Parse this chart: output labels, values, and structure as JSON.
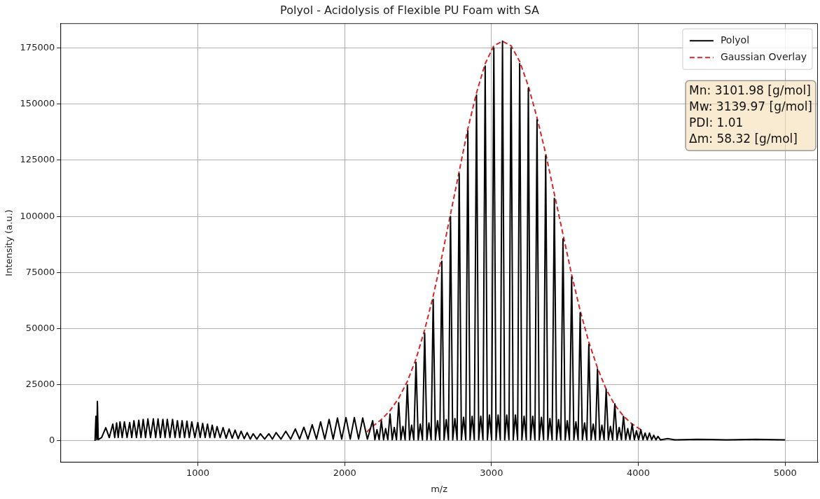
{
  "chart_data": {
    "type": "line",
    "title": "Polyol - Acidolysis of Flexible PU Foam with SA",
    "xlabel": "m/z",
    "ylabel": "Intensity (a.u.)",
    "xlim": [
      64,
      5223
    ],
    "ylim": [
      -9600,
      186000
    ],
    "xticks": [
      1000,
      2000,
      3000,
      4000,
      5000
    ],
    "yticks": [
      0,
      25000,
      50000,
      75000,
      100000,
      125000,
      150000,
      175000
    ],
    "grid": true,
    "legend": "top right",
    "marker": "none",
    "annotations": [
      "Mn: 3101.98 [g/mol]",
      "Mw: 3139.97 [g/mol]",
      "PDI: 1.01",
      "Δm: 58.32 [g/mol]"
    ],
    "series": [
      {
        "name": "Polyol",
        "color": "#000000",
        "line_style": "solid",
        "x": [
          300,
          306,
          312,
          316,
          322,
          345,
          373,
          397,
          421,
          434,
          447,
          458,
          470,
          485,
          500,
          518,
          536,
          550,
          565,
          582,
          598,
          613,
          628,
          644,
          660,
          678,
          697,
          713,
          729,
          745,
          762,
          777,
          792,
          810,
          828,
          845,
          861,
          877,
          893,
          910,
          926,
          942,
          959,
          980,
          1000,
          1016,
          1033,
          1050,
          1066,
          1082,
          1098,
          1115,
          1131,
          1152,
          1172,
          1193,
          1213,
          1234,
          1254,
          1275,
          1295,
          1316,
          1336,
          1357,
          1377,
          1402,
          1426,
          1455,
          1484,
          1508,
          1533,
          1566,
          1599,
          1632,
          1664,
          1693,
          1722,
          1750,
          1779,
          1808,
          1836,
          1865,
          1894,
          1922,
          1951,
          1980,
          2009,
          2038,
          2066,
          2095,
          2123,
          2155,
          2191,
          2206,
          2220,
          2235,
          2250,
          2265,
          2279,
          2294,
          2309,
          2324,
          2338,
          2353,
          2368,
          2383,
          2397,
          2412,
          2427,
          2442,
          2456,
          2471,
          2486,
          2501,
          2515,
          2530,
          2545,
          2560,
          2574,
          2589,
          2603,
          2618,
          2633,
          2648,
          2662,
          2677,
          2692,
          2707,
          2721,
          2736,
          2751,
          2766,
          2780,
          2795,
          2810,
          2825,
          2839,
          2854,
          2868,
          2883,
          2898,
          2913,
          2927,
          2942,
          2957,
          2972,
          2986,
          3001,
          3016,
          3031,
          3045,
          3060,
          3075,
          3090,
          3104,
          3119,
          3133,
          3148,
          3163,
          3178,
          3192,
          3207,
          3222,
          3237,
          3251,
          3266,
          3281,
          3296,
          3310,
          3325,
          3340,
          3355,
          3369,
          3384,
          3398,
          3413,
          3428,
          3443,
          3457,
          3472,
          3487,
          3502,
          3516,
          3531,
          3546,
          3561,
          3575,
          3590,
          3604,
          3619,
          3634,
          3649,
          3663,
          3678,
          3693,
          3708,
          3722,
          3737,
          3752,
          3767,
          3781,
          3796,
          3810,
          3825,
          3840,
          3855,
          3870,
          3885,
          3899,
          3914,
          3928,
          3943,
          3958,
          3973,
          3987,
          4002,
          4017,
          4032,
          4046,
          4061,
          4076,
          4091,
          4105,
          4120,
          4134,
          4150,
          4200,
          4250,
          4400,
          4600,
          4800,
          5000
        ],
        "values": [
          0,
          11000,
          600,
          17600,
          600,
          1500,
          5900,
          1500,
          7500,
          1500,
          8000,
          1500,
          8500,
          1500,
          8500,
          1500,
          8200,
          1500,
          9000,
          1500,
          9200,
          1500,
          9600,
          1500,
          9800,
          1500,
          9800,
          1500,
          9800,
          1500,
          9600,
          1500,
          9600,
          1500,
          9600,
          1500,
          9000,
          1500,
          9000,
          1500,
          8800,
          1500,
          8500,
          1500,
          8200,
          1500,
          7800,
          1500,
          7500,
          1500,
          7000,
          1500,
          6400,
          1500,
          5900,
          1200,
          5300,
          1200,
          4800,
          1000,
          4300,
          1000,
          3700,
          800,
          3200,
          800,
          3200,
          800,
          3200,
          800,
          3700,
          800,
          4300,
          800,
          5300,
          800,
          6100,
          800,
          7200,
          800,
          8500,
          800,
          9600,
          800,
          10200,
          800,
          10400,
          800,
          10400,
          800,
          10200,
          800,
          9000,
          500,
          5000,
          500,
          9000,
          500,
          5500,
          500,
          12000,
          500,
          6000,
          500,
          17000,
          500,
          6500,
          500,
          25000,
          500,
          7000,
          500,
          35000,
          500,
          7500,
          500,
          48000,
          500,
          8000,
          500,
          63000,
          500,
          9000,
          500,
          80000,
          500,
          9500,
          500,
          100000,
          500,
          10000,
          500,
          119000,
          500,
          10500,
          500,
          138000,
          500,
          11000,
          500,
          154000,
          500,
          11000,
          500,
          167000,
          500,
          11500,
          500,
          175000,
          500,
          11500,
          500,
          178000,
          500,
          11500,
          500,
          175000,
          500,
          11500,
          500,
          168000,
          500,
          11000,
          500,
          157000,
          500,
          11000,
          500,
          143000,
          500,
          10500,
          500,
          127000,
          500,
          10000,
          500,
          108000,
          500,
          9500,
          500,
          90000,
          500,
          9000,
          500,
          73000,
          500,
          8500,
          500,
          57000,
          500,
          8000,
          500,
          43000,
          500,
          7500,
          500,
          32000,
          500,
          7000,
          500,
          23000,
          500,
          6500,
          500,
          16500,
          500,
          6000,
          500,
          11000,
          500,
          5500,
          500,
          7500,
          500,
          4500,
          500,
          5000,
          500,
          3500,
          500,
          3500,
          500,
          2500,
          500,
          2000,
          500,
          1000,
          500,
          700,
          500,
          700,
          500
        ]
      },
      {
        "name": "Gaussian Overlay",
        "color": "#d62728",
        "line_style": "dashed",
        "x": [
          2151,
          2191,
          2250,
          2309,
          2368,
          2427,
          2486,
          2545,
          2603,
          2662,
          2721,
          2780,
          2839,
          2898,
          2957,
          3016,
          3075,
          3133,
          3192,
          3251,
          3310,
          3369,
          3428,
          3487,
          3546,
          3604,
          3663,
          3722,
          3781,
          3840,
          3899,
          3958,
          4017
        ],
        "values": [
          4000,
          6500,
          9500,
          13500,
          19000,
          26500,
          36500,
          49500,
          64500,
          82000,
          101000,
          120000,
          139000,
          155000,
          168000,
          176000,
          178000,
          176000,
          169000,
          158000,
          144000,
          128000,
          110000,
          92000,
          74000,
          58000,
          44000,
          32500,
          23000,
          16000,
          11000,
          7500,
          5000
        ]
      }
    ]
  }
}
